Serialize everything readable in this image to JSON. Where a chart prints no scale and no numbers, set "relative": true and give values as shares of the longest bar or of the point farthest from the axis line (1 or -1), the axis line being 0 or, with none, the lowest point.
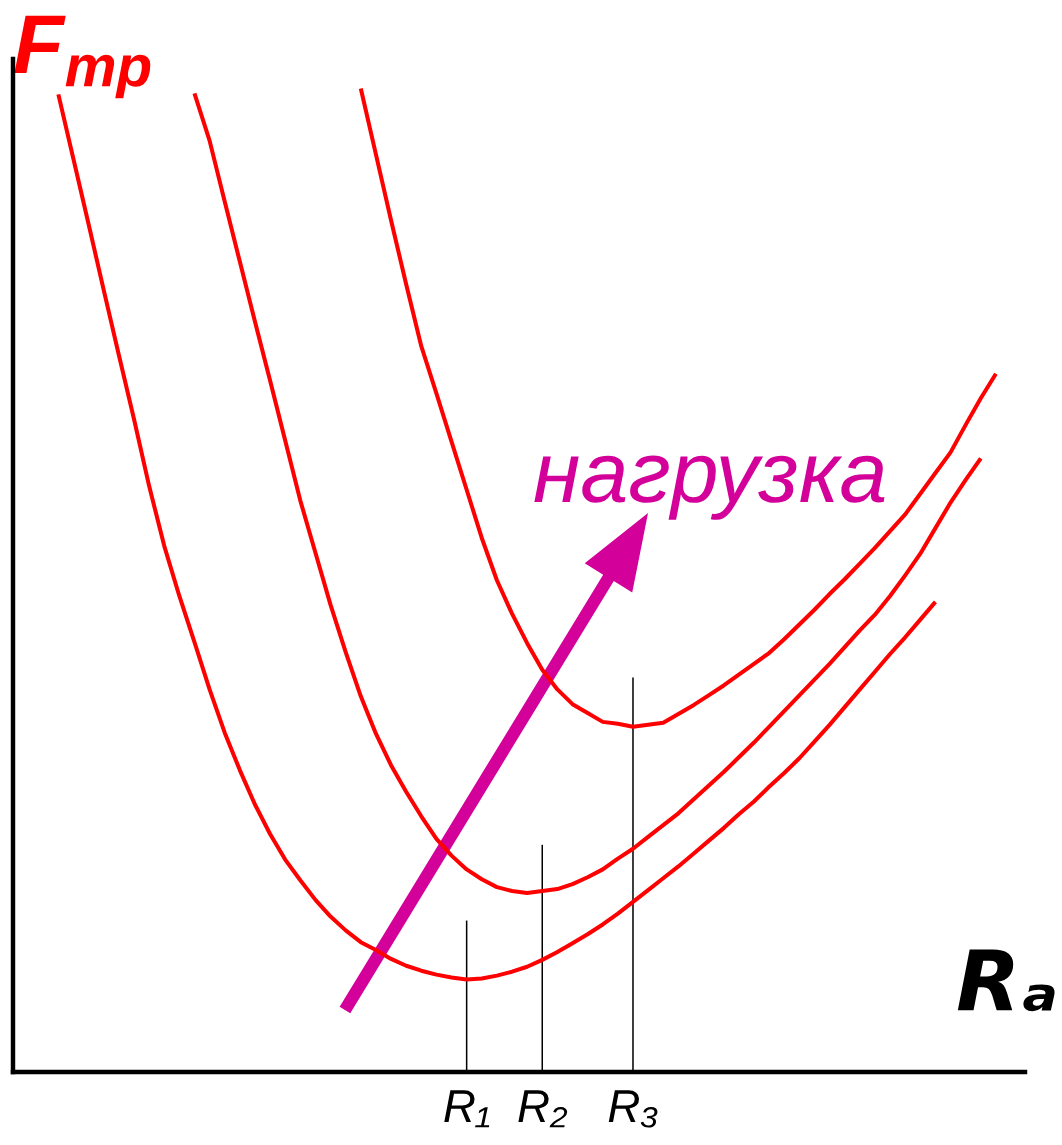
{
  "chart_data": {
    "type": "line",
    "relative": true,
    "xlabel": "Rₐ",
    "ylabel": "F$_{тр}$",
    "categories": [
      null,
      null,
      null,
      null,
      null,
      null,
      null,
      null,
      null,
      null,
      null,
      null,
      null,
      null,
      null,
      null,
      null,
      null,
      null,
      null,
      null,
      null,
      null,
      null,
      null,
      null,
      null,
      null,
      null,
      null,
      "R₁",
      null,
      null,
      null,
      null,
      "R₂",
      null,
      null,
      null,
      null,
      null,
      "R₃",
      null,
      null,
      null,
      null,
      null,
      null,
      null,
      null,
      null,
      null,
      null,
      null,
      null,
      null,
      null,
      null,
      null,
      null,
      null,
      null,
      null,
      null,
      null,
      null,
      null
    ],
    "series": [
      {
        "color": "#ff0000",
        "values": [
          null,
          null,
          null,
          0.994,
          0.928,
          0.862,
          0.795,
          0.729,
          0.664,
          0.596,
          0.535,
          0.484,
          0.437,
          0.389,
          0.345,
          0.307,
          0.272,
          0.242,
          0.216,
          0.195,
          0.175,
          0.158,
          0.144,
          0.132,
          0.124,
          0.115,
          0.108,
          0.103,
          0.099,
          0.096,
          0.094,
          0.095,
          0.098,
          0.102,
          0.107,
          0.114,
          0.122,
          0.131,
          0.14,
          0.15,
          0.161,
          0.173,
          0.185,
          0.197,
          0.209,
          0.222,
          0.235,
          0.248,
          0.262,
          0.275,
          0.29,
          0.304,
          0.319,
          0.336,
          0.353,
          0.371,
          0.389,
          0.407,
          0.425,
          0.442,
          0.46,
          0.478,
          null,
          null,
          null,
          null,
          null
        ]
      },
      {
        "color": "#ff0000",
        "values": [
          null,
          null,
          null,
          null,
          null,
          null,
          null,
          null,
          null,
          null,
          null,
          null,
          0.995,
          0.947,
          0.885,
          0.824,
          0.763,
          0.703,
          0.642,
          0.581,
          0.528,
          0.475,
          0.427,
          0.382,
          0.344,
          0.312,
          0.285,
          0.26,
          0.237,
          0.22,
          0.206,
          0.196,
          0.188,
          0.184,
          0.182,
          0.184,
          0.186,
          0.191,
          0.198,
          0.206,
          0.217,
          0.227,
          0.239,
          0.251,
          0.263,
          0.277,
          0.291,
          0.305,
          0.32,
          0.335,
          0.351,
          0.367,
          0.383,
          0.399,
          0.415,
          0.432,
          0.449,
          0.465,
          0.484,
          0.505,
          0.527,
          0.553,
          0.579,
          0.602,
          0.624,
          null,
          null
        ]
      },
      {
        "color": "#ff0000",
        "values": [
          null,
          null,
          null,
          null,
          null,
          null,
          null,
          null,
          null,
          null,
          null,
          null,
          null,
          null,
          null,
          null,
          null,
          null,
          null,
          null,
          null,
          null,
          null,
          1.0,
          0.933,
          0.866,
          0.801,
          0.738,
          0.69,
          0.641,
          0.592,
          0.543,
          0.5,
          0.466,
          0.436,
          0.409,
          0.389,
          0.374,
          0.365,
          0.356,
          0.354,
          0.351,
          0.353,
          0.355,
          0.364,
          0.373,
          0.383,
          0.393,
          0.404,
          0.415,
          0.426,
          0.44,
          0.455,
          0.47,
          0.486,
          0.501,
          0.517,
          0.533,
          0.55,
          0.567,
          0.588,
          0.609,
          0.63,
          0.658,
          0.685,
          0.71,
          null
        ]
      },
      {
        "type": "bar",
        "color": "#000000",
        "values": [
          null,
          null,
          null,
          null,
          null,
          null,
          null,
          null,
          null,
          null,
          null,
          null,
          null,
          null,
          null,
          null,
          null,
          null,
          null,
          null,
          null,
          null,
          null,
          null,
          null,
          null,
          null,
          null,
          null,
          null,
          0.154,
          null,
          null,
          null,
          null,
          0.231,
          null,
          null,
          null,
          null,
          null,
          0.401,
          null,
          null,
          null,
          null,
          null,
          null,
          null,
          null,
          null,
          null,
          null,
          null,
          null,
          null,
          null,
          null,
          null,
          null,
          null,
          null,
          null,
          null,
          null,
          null,
          null
        ]
      }
    ],
    "annotations": [
      "нагрузка"
    ]
  }
}
